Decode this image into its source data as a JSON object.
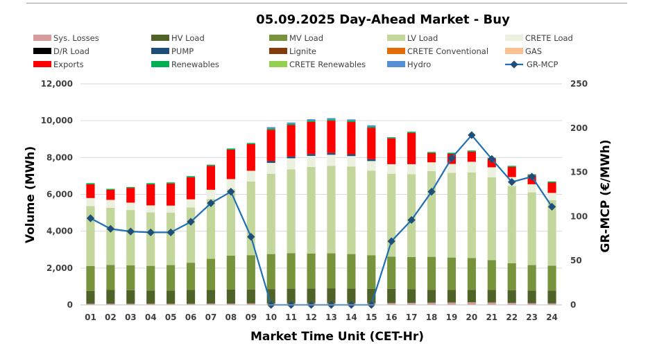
{
  "chart_data": {
    "type": "bar",
    "title": "05.09.2025  Day-Ahead Market - Buy",
    "xlabel": "Market Time Unit (CET-Hr)",
    "ylabel": "Volume (MWh)",
    "y2label": "GR-MCP (€/MWh)",
    "ylim": [
      0,
      12000
    ],
    "y2lim": [
      0,
      250
    ],
    "yticks": [
      "0",
      "2,000",
      "4,000",
      "6,000",
      "8,000",
      "10,000",
      "12,000"
    ],
    "y2ticks": [
      "0",
      "50",
      "100",
      "150",
      "200",
      "250"
    ],
    "grid": true,
    "stacked": true,
    "categories": [
      "01",
      "02",
      "03",
      "04",
      "05",
      "06",
      "07",
      "08",
      "09",
      "10",
      "11",
      "12",
      "13",
      "14",
      "15",
      "16",
      "17",
      "18",
      "19",
      "20",
      "21",
      "22",
      "23",
      "24"
    ],
    "legend": [
      {
        "name": "Sys. Losses",
        "color": "#d79b9b",
        "kind": "bar"
      },
      {
        "name": "HV Load",
        "color": "#4f6228",
        "kind": "bar"
      },
      {
        "name": "MV Load",
        "color": "#77933c",
        "kind": "bar"
      },
      {
        "name": "LV Load",
        "color": "#c3d69b",
        "kind": "bar"
      },
      {
        "name": "CRETE Load",
        "color": "#ebf1de",
        "kind": "bar"
      },
      {
        "name": "D/R Load",
        "color": "#000000",
        "kind": "bar"
      },
      {
        "name": "PUMP",
        "color": "#1f4e79",
        "kind": "bar"
      },
      {
        "name": "Lignite",
        "color": "#843c0c",
        "kind": "bar"
      },
      {
        "name": "CRETE Conventional",
        "color": "#e36c09",
        "kind": "bar"
      },
      {
        "name": "GAS",
        "color": "#fac090",
        "kind": "bar"
      },
      {
        "name": "Exports",
        "color": "#ff0000",
        "kind": "bar"
      },
      {
        "name": "Renewables",
        "color": "#00b050",
        "kind": "bar"
      },
      {
        "name": "CRETE Renewables",
        "color": "#92d050",
        "kind": "bar"
      },
      {
        "name": "Hydro",
        "color": "#558ed5",
        "kind": "bar"
      },
      {
        "name": "GR-MCP",
        "color": "#1f6fb5",
        "kind": "line"
      }
    ],
    "series": [
      {
        "name": "Sys. Losses",
        "color": "#d79b9b",
        "values": [
          60,
          60,
          60,
          60,
          60,
          60,
          70,
          70,
          80,
          80,
          80,
          90,
          90,
          90,
          90,
          100,
          110,
          120,
          130,
          140,
          130,
          110,
          90,
          80
        ]
      },
      {
        "name": "HV Load",
        "color": "#4f6228",
        "values": [
          700,
          750,
          740,
          720,
          720,
          750,
          750,
          760,
          760,
          780,
          800,
          800,
          810,
          800,
          780,
          770,
          740,
          700,
          680,
          680,
          680,
          690,
          690,
          700
        ]
      },
      {
        "name": "MV Load",
        "color": "#77933c",
        "values": [
          1350,
          1360,
          1350,
          1340,
          1380,
          1480,
          1680,
          1840,
          1860,
          1900,
          1930,
          1900,
          1900,
          1870,
          1820,
          1750,
          1750,
          1790,
          1760,
          1720,
          1620,
          1460,
          1380,
          1350
        ]
      },
      {
        "name": "LV Load",
        "color": "#c3d69b",
        "values": [
          3250,
          3100,
          3000,
          2900,
          2850,
          3000,
          3250,
          3600,
          4000,
          4350,
          4550,
          4700,
          4750,
          4750,
          4600,
          4500,
          4500,
          4650,
          4600,
          4650,
          4500,
          4200,
          3950,
          3550
        ]
      },
      {
        "name": "CRETE Load",
        "color": "#ebf1de",
        "values": [
          440,
          430,
          400,
          380,
          380,
          440,
          500,
          560,
          580,
          600,
          600,
          600,
          600,
          570,
          520,
          520,
          540,
          480,
          480,
          580,
          540,
          480,
          440,
          400
        ]
      },
      {
        "name": "D/R Load",
        "color": "#000000",
        "values": [
          0,
          0,
          0,
          0,
          0,
          0,
          0,
          0,
          0,
          0,
          0,
          0,
          0,
          0,
          0,
          0,
          0,
          0,
          0,
          0,
          0,
          0,
          0,
          0
        ]
      },
      {
        "name": "PUMP",
        "color": "#1f4e79",
        "values": [
          0,
          0,
          0,
          0,
          0,
          0,
          0,
          0,
          0,
          100,
          100,
          100,
          100,
          100,
          100,
          0,
          0,
          0,
          0,
          0,
          0,
          0,
          0,
          0
        ]
      },
      {
        "name": "Lignite",
        "color": "#843c0c",
        "values": [
          0,
          0,
          0,
          0,
          0,
          0,
          0,
          0,
          0,
          0,
          0,
          0,
          0,
          0,
          0,
          0,
          0,
          0,
          0,
          0,
          0,
          0,
          0,
          0
        ]
      },
      {
        "name": "CRETE Conventional",
        "color": "#e36c09",
        "values": [
          0,
          0,
          0,
          0,
          0,
          0,
          0,
          0,
          0,
          0,
          0,
          0,
          0,
          0,
          0,
          0,
          0,
          0,
          0,
          0,
          0,
          0,
          0,
          0
        ]
      },
      {
        "name": "GAS",
        "color": "#fac090",
        "values": [
          0,
          0,
          0,
          0,
          0,
          0,
          0,
          0,
          0,
          0,
          0,
          0,
          0,
          0,
          0,
          0,
          0,
          0,
          0,
          0,
          0,
          0,
          0,
          0
        ]
      },
      {
        "name": "Exports",
        "color": "#ff0000",
        "values": [
          750,
          550,
          800,
          1150,
          1200,
          1200,
          1300,
          1600,
          1450,
          1700,
          1700,
          1750,
          1750,
          1750,
          1700,
          1400,
          1700,
          500,
          550,
          550,
          450,
          550,
          480,
          560
        ]
      },
      {
        "name": "Renewables",
        "color": "#00b050",
        "values": [
          60,
          50,
          50,
          60,
          60,
          60,
          60,
          60,
          60,
          70,
          70,
          70,
          70,
          70,
          70,
          60,
          60,
          60,
          60,
          60,
          60,
          60,
          60,
          60
        ]
      },
      {
        "name": "CRETE Renewables",
        "color": "#92d050",
        "values": [
          0,
          0,
          0,
          0,
          0,
          0,
          0,
          0,
          0,
          0,
          0,
          0,
          0,
          0,
          0,
          0,
          0,
          0,
          0,
          0,
          0,
          0,
          0,
          0
        ]
      },
      {
        "name": "Hydro",
        "color": "#558ed5",
        "values": [
          0,
          0,
          0,
          0,
          0,
          0,
          0,
          0,
          0,
          70,
          70,
          70,
          70,
          70,
          70,
          0,
          0,
          0,
          0,
          0,
          0,
          0,
          0,
          0
        ]
      }
    ],
    "line": {
      "name": "GR-MCP",
      "color": "#1f6fb5",
      "marker_color": "#1f4e79",
      "axis": "right",
      "values": [
        98,
        86,
        83,
        82,
        82,
        94,
        115,
        128,
        77,
        0,
        0,
        0,
        0,
        0,
        0,
        72,
        96,
        128,
        166,
        192,
        165,
        139,
        145,
        111
      ]
    }
  }
}
